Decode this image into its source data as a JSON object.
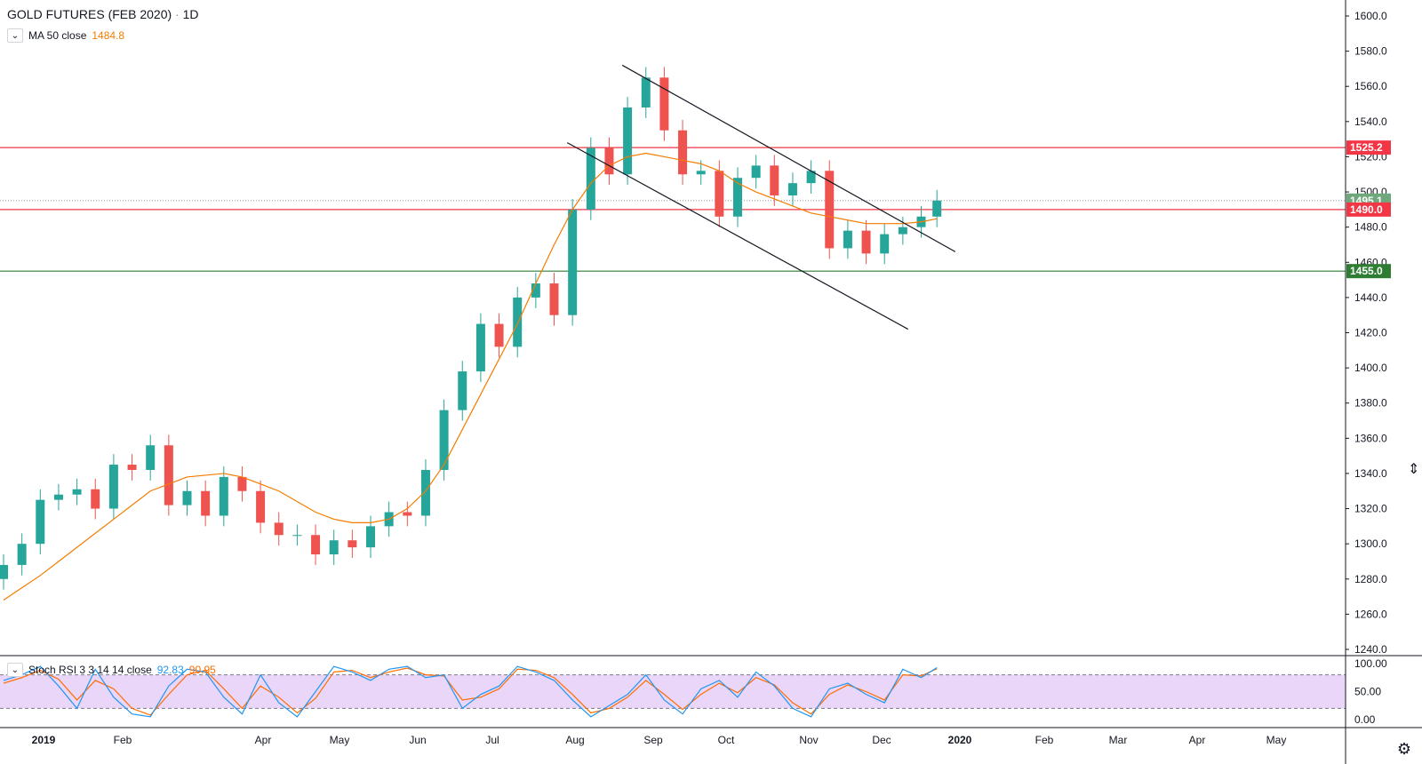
{
  "header": {
    "title": "GOLD FUTURES (FEB 2020)",
    "separator": "·",
    "interval": "1D"
  },
  "indicators": {
    "ma": {
      "label": "MA 50 close",
      "value": "1484.8"
    },
    "stoch": {
      "label": "Stoch RSI 3 3 14 14 close",
      "k_value": "92.83",
      "d_value": "90.95"
    }
  },
  "price_axis": {
    "ticks": [
      "1600.0",
      "1580.0",
      "1560.0",
      "1540.0",
      "1520.0",
      "1500.0",
      "1480.0",
      "1460.0",
      "1440.0",
      "1420.0",
      "1400.0",
      "1380.0",
      "1360.0",
      "1340.0",
      "1320.0",
      "1300.0",
      "1280.0",
      "1260.0",
      "1240.0"
    ]
  },
  "price_labels": [
    {
      "text": "1525.2",
      "value": 1525.2,
      "color": "#f23645"
    },
    {
      "text": "1495.1",
      "value": 1495.1,
      "color": "#6fa87c"
    },
    {
      "text": "1490.0",
      "value": 1490.0,
      "color": "#f23645"
    },
    {
      "text": "1455.0",
      "value": 1455.0,
      "color": "#2e7d32"
    }
  ],
  "horizontal_lines": [
    {
      "value": 1525.2,
      "color": "#f23645"
    },
    {
      "value": 1490.0,
      "color": "#f23645"
    },
    {
      "value": 1455.0,
      "color": "#2e7d32"
    }
  ],
  "stoch_axis": {
    "ticks": [
      "100.00",
      "50.00",
      "0.00"
    ]
  },
  "time_axis": {
    "labels": [
      "2019",
      "Feb",
      "Apr",
      "May",
      "Jun",
      "Jul",
      "Aug",
      "Sep",
      "Oct",
      "Nov",
      "Dec",
      "2020",
      "Feb",
      "Mar",
      "Apr",
      "May"
    ]
  },
  "colors": {
    "up": "#26a69a",
    "down": "#ef5350",
    "ma": "#f57c00",
    "stoch_k": "#2196f3",
    "stoch_d": "#ff6d00",
    "stoch_band": "#e1c4f7"
  },
  "chart_data": {
    "type": "candlestick",
    "title": "GOLD FUTURES (FEB 2020) · 1D",
    "ylim": [
      1230,
      1610
    ],
    "x": [
      "2019-01-02",
      "2019-01-09",
      "2019-01-16",
      "2019-01-23",
      "2019-01-30",
      "2019-02-06",
      "2019-02-13",
      "2019-02-20",
      "2019-02-27",
      "2019-03-06",
      "2019-03-13",
      "2019-03-20",
      "2019-03-27",
      "2019-04-03",
      "2019-04-10",
      "2019-04-17",
      "2019-04-24",
      "2019-05-01",
      "2019-05-08",
      "2019-05-15",
      "2019-05-22",
      "2019-05-29",
      "2019-06-05",
      "2019-06-12",
      "2019-06-19",
      "2019-06-26",
      "2019-07-03",
      "2019-07-10",
      "2019-07-17",
      "2019-07-24",
      "2019-07-31",
      "2019-08-07",
      "2019-08-14",
      "2019-08-21",
      "2019-08-28",
      "2019-09-04",
      "2019-09-11",
      "2019-09-18",
      "2019-09-25",
      "2019-10-02",
      "2019-10-09",
      "2019-10-16",
      "2019-10-23",
      "2019-10-30",
      "2019-11-06",
      "2019-11-13",
      "2019-11-20",
      "2019-11-27",
      "2019-12-04",
      "2019-12-11",
      "2019-12-18",
      "2019-12-24"
    ],
    "close": [
      1288,
      1300,
      1325,
      1328,
      1331,
      1320,
      1345,
      1342,
      1356,
      1322,
      1330,
      1316,
      1338,
      1330,
      1312,
      1305,
      1305,
      1294,
      1302,
      1298,
      1310,
      1318,
      1316,
      1342,
      1376,
      1398,
      1425,
      1412,
      1440,
      1448,
      1430,
      1490,
      1525,
      1510,
      1548,
      1565,
      1535,
      1510,
      1512,
      1486,
      1508,
      1515,
      1498,
      1505,
      1512,
      1468,
      1478,
      1465,
      1476,
      1480,
      1486,
      1495.1
    ],
    "ma50": [
      1268,
      1275,
      1282,
      1290,
      1298,
      1306,
      1314,
      1322,
      1330,
      1334,
      1338,
      1339,
      1340,
      1338,
      1334,
      1330,
      1324,
      1318,
      1314,
      1312,
      1312,
      1314,
      1320,
      1330,
      1345,
      1365,
      1385,
      1405,
      1425,
      1448,
      1470,
      1490,
      1505,
      1515,
      1520,
      1522,
      1520,
      1518,
      1516,
      1512,
      1505,
      1500,
      1496,
      1492,
      1488,
      1486,
      1484,
      1482,
      1482,
      1482,
      1483,
      1484.8
    ],
    "stoch_k": [
      70,
      80,
      95,
      60,
      20,
      90,
      40,
      10,
      5,
      60,
      90,
      85,
      40,
      10,
      80,
      30,
      5,
      50,
      95,
      85,
      70,
      90,
      95,
      75,
      80,
      20,
      45,
      60,
      95,
      85,
      70,
      35,
      5,
      25,
      45,
      80,
      35,
      10,
      55,
      70,
      40,
      85,
      60,
      20,
      5,
      55,
      65,
      45,
      30,
      90,
      75,
      92.83
    ],
    "stoch_d": [
      65,
      75,
      88,
      72,
      35,
      70,
      55,
      20,
      8,
      45,
      80,
      88,
      55,
      20,
      60,
      40,
      12,
      38,
      85,
      88,
      75,
      85,
      92,
      80,
      78,
      35,
      40,
      55,
      90,
      88,
      75,
      45,
      12,
      20,
      40,
      70,
      45,
      18,
      45,
      65,
      48,
      75,
      62,
      30,
      10,
      45,
      62,
      50,
      35,
      80,
      78,
      90.95
    ],
    "channel_upper": [
      {
        "x": "2019-08-26",
        "y": 1572
      },
      {
        "x": "2019-12-31",
        "y": 1466
      }
    ],
    "channel_lower": [
      {
        "x": "2019-08-05",
        "y": 1528
      },
      {
        "x": "2019-12-13",
        "y": 1422
      }
    ]
  }
}
